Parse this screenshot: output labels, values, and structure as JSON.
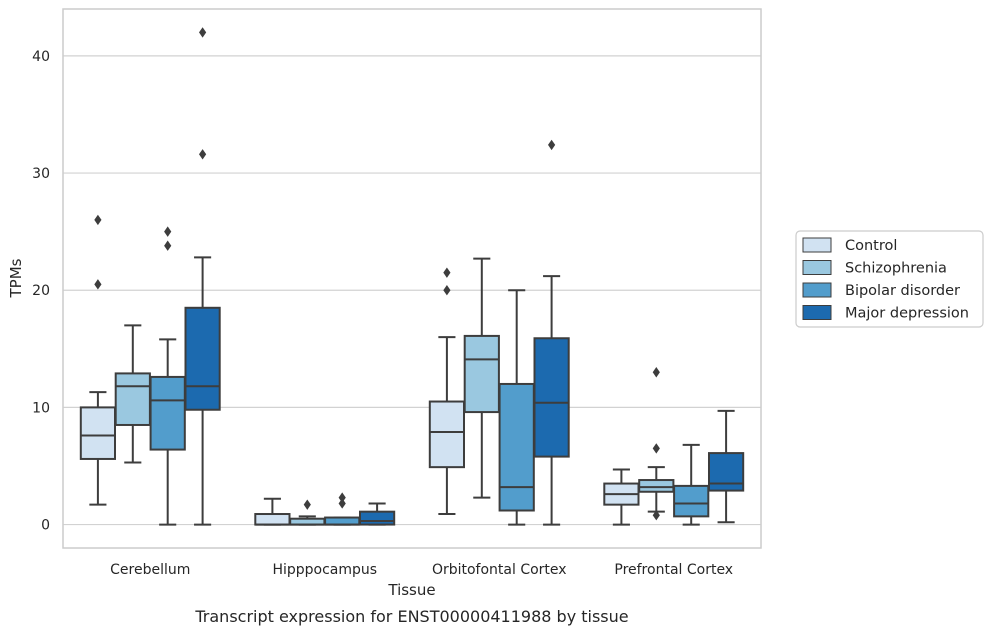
{
  "chart_data": {
    "type": "box",
    "title": "",
    "caption": "Transcript expression for ENST00000411988 by tissue",
    "xlabel": "Tissue",
    "ylabel": "TPMs",
    "ylim": [
      -2,
      44
    ],
    "yticks": [
      0,
      10,
      20,
      30,
      40
    ],
    "grid": "horizontal",
    "legend_placement": "right",
    "categories": [
      "Cerebellum",
      "Hipppocampus",
      "Orbitofontal Cortex",
      "Prefrontal Cortex"
    ],
    "series": [
      {
        "name": "Control",
        "color": "#d1e2f2",
        "boxes": [
          {
            "whislo": 1.7,
            "q1": 5.6,
            "med": 7.6,
            "q3": 10.0,
            "whishi": 11.3,
            "fliers": [
              20.5,
              26.0
            ]
          },
          {
            "whislo": 0.0,
            "q1": 0.0,
            "med": 0.0,
            "q3": 0.9,
            "whishi": 2.2,
            "fliers": []
          },
          {
            "whislo": 0.9,
            "q1": 4.9,
            "med": 7.9,
            "q3": 10.5,
            "whishi": 16.0,
            "fliers": [
              20.0,
              21.5
            ]
          },
          {
            "whislo": 0.0,
            "q1": 1.7,
            "med": 2.6,
            "q3": 3.5,
            "whishi": 4.7,
            "fliers": []
          }
        ]
      },
      {
        "name": "Schizophrenia",
        "color": "#9ac8e0",
        "boxes": [
          {
            "whislo": 5.3,
            "q1": 8.5,
            "med": 11.8,
            "q3": 12.9,
            "whishi": 17.0,
            "fliers": []
          },
          {
            "whislo": 0.0,
            "q1": 0.0,
            "med": 0.0,
            "q3": 0.5,
            "whishi": 0.7,
            "fliers": [
              1.7
            ]
          },
          {
            "whislo": 2.3,
            "q1": 9.6,
            "med": 14.1,
            "q3": 16.1,
            "whishi": 22.7,
            "fliers": []
          },
          {
            "whislo": 1.1,
            "q1": 2.8,
            "med": 3.2,
            "q3": 3.8,
            "whishi": 4.9,
            "fliers": [
              0.8,
              6.5,
              13.0
            ]
          }
        ]
      },
      {
        "name": "Bipolar disorder",
        "color": "#529dcc",
        "boxes": [
          {
            "whislo": 0.0,
            "q1": 6.4,
            "med": 10.6,
            "q3": 12.6,
            "whishi": 15.8,
            "fliers": [
              23.8,
              25.0
            ]
          },
          {
            "whislo": 0.0,
            "q1": 0.0,
            "med": 0.0,
            "q3": 0.6,
            "whishi": 0.6,
            "fliers": [
              1.8,
              2.3
            ]
          },
          {
            "whislo": 0.0,
            "q1": 1.2,
            "med": 3.2,
            "q3": 12.0,
            "whishi": 20.0,
            "fliers": []
          },
          {
            "whislo": 0.0,
            "q1": 0.7,
            "med": 1.8,
            "q3": 3.3,
            "whishi": 6.8,
            "fliers": []
          }
        ]
      },
      {
        "name": "Major depression",
        "color": "#1c6aaf",
        "boxes": [
          {
            "whislo": 0.0,
            "q1": 9.8,
            "med": 11.8,
            "q3": 18.5,
            "whishi": 22.8,
            "fliers": [
              31.6,
              42.0
            ]
          },
          {
            "whislo": 0.0,
            "q1": 0.0,
            "med": 0.3,
            "q3": 1.1,
            "whishi": 1.8,
            "fliers": []
          },
          {
            "whislo": 0.0,
            "q1": 5.8,
            "med": 10.4,
            "q3": 15.9,
            "whishi": 21.2,
            "fliers": [
              32.4
            ]
          },
          {
            "whislo": 0.2,
            "q1": 2.9,
            "med": 3.5,
            "q3": 6.1,
            "whishi": 9.7,
            "fliers": []
          }
        ]
      }
    ]
  }
}
